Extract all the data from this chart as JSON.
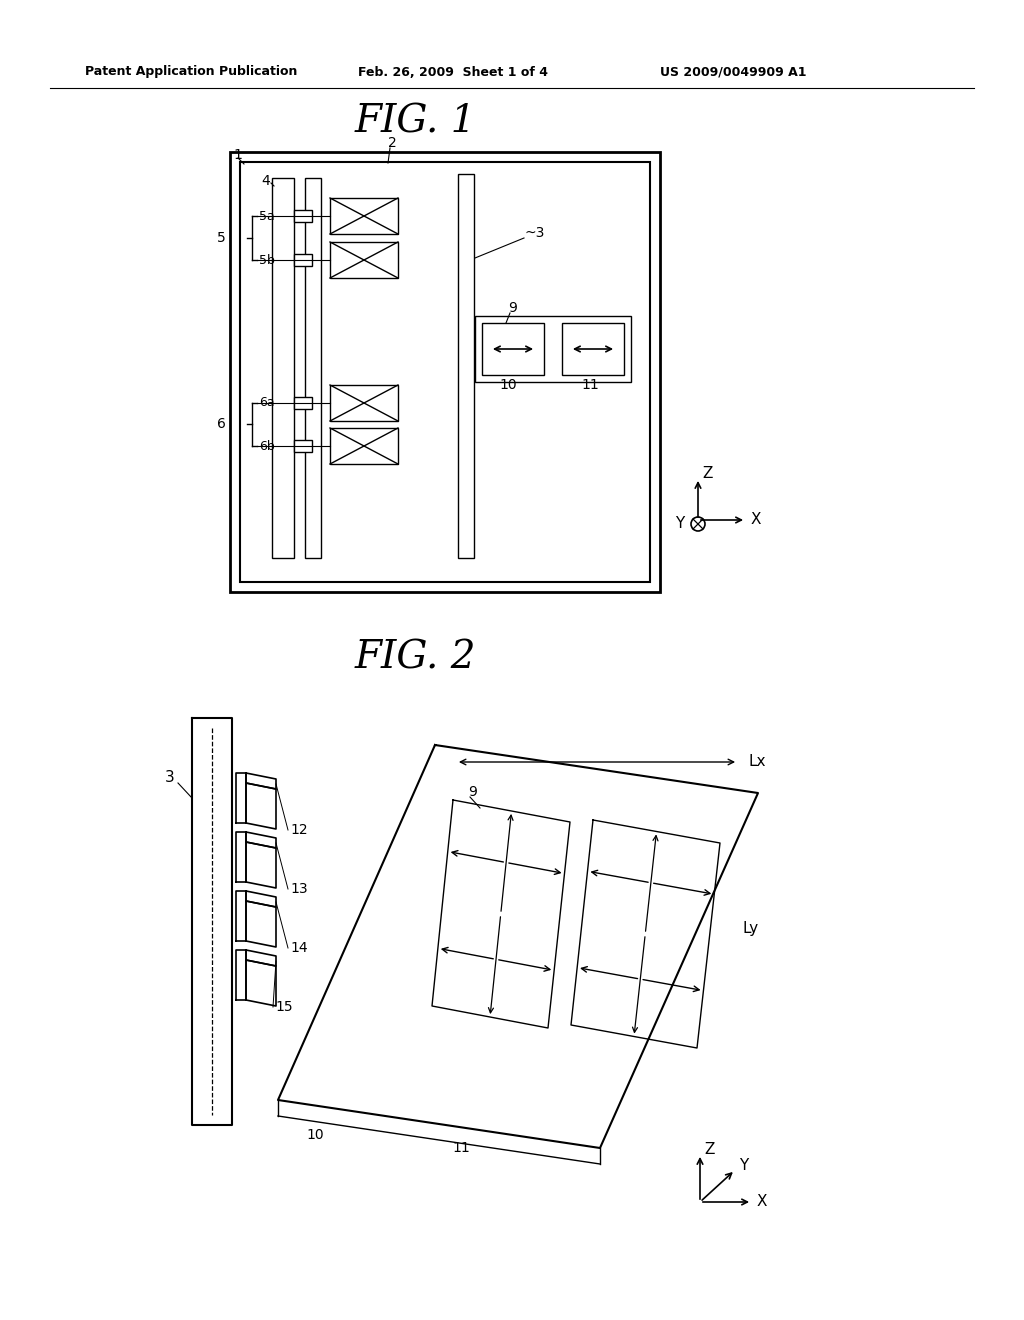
{
  "bg_color": "#ffffff",
  "header_text": "Patent Application Publication",
  "header_date": "Feb. 26, 2009  Sheet 1 of 4",
  "header_patent": "US 2009/0049909 A1",
  "fig1_title": "FIG. 1",
  "fig2_title": "FIG. 2"
}
